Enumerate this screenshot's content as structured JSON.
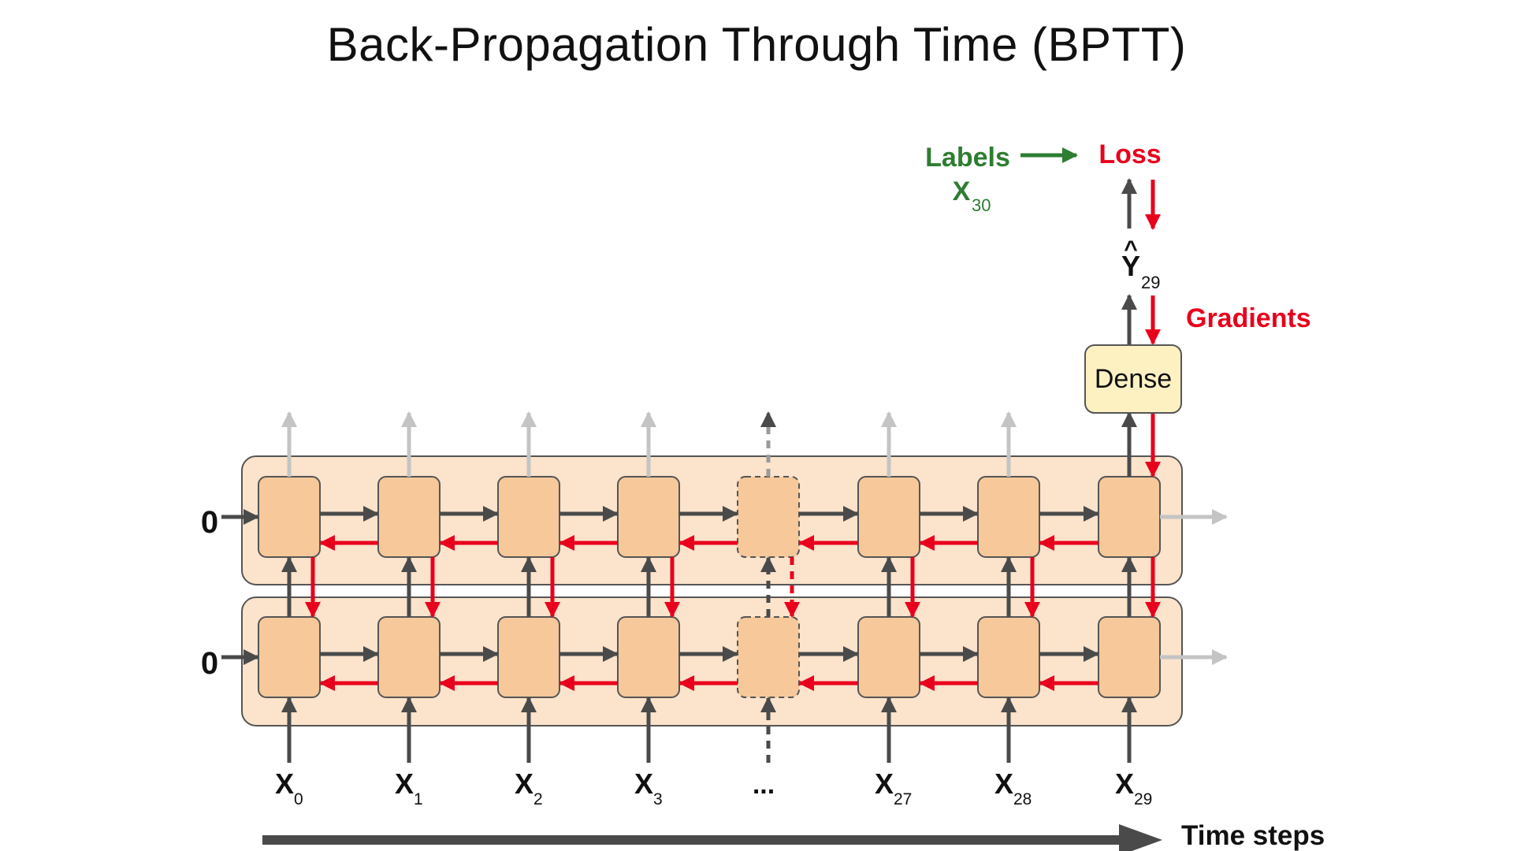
{
  "title": "Back-Propagation Through Time (BPTT)",
  "initial_states": [
    "0",
    "0"
  ],
  "time_steps": [
    {
      "base": "X",
      "sub": "0",
      "dashed": false
    },
    {
      "base": "X",
      "sub": "1",
      "dashed": false
    },
    {
      "base": "X",
      "sub": "2",
      "dashed": false
    },
    {
      "base": "X",
      "sub": "3",
      "dashed": false
    },
    {
      "base": "...",
      "sub": "",
      "dashed": true
    },
    {
      "base": "X",
      "sub": "27",
      "dashed": false
    },
    {
      "base": "X",
      "sub": "28",
      "dashed": false
    },
    {
      "base": "X",
      "sub": "29",
      "dashed": false
    }
  ],
  "dense_label": "Dense",
  "output": {
    "hat": "^",
    "base": "Y",
    "sub": "29"
  },
  "labels": {
    "text": "Labels",
    "base": "X",
    "sub": "30"
  },
  "loss_label": "Loss",
  "gradients_label": "Gradients",
  "time_axis_label": "Time steps",
  "colors": {
    "forward_arrow": "#4a4a4a",
    "gradient_arrow": "#e8001c",
    "faded_arrow": "#c4c4c4",
    "label_green": "#2e7d32",
    "cell_fill": "#f6c89a",
    "layer_fill": "#fbe3cc",
    "dense_fill": "#fdf1c2"
  }
}
